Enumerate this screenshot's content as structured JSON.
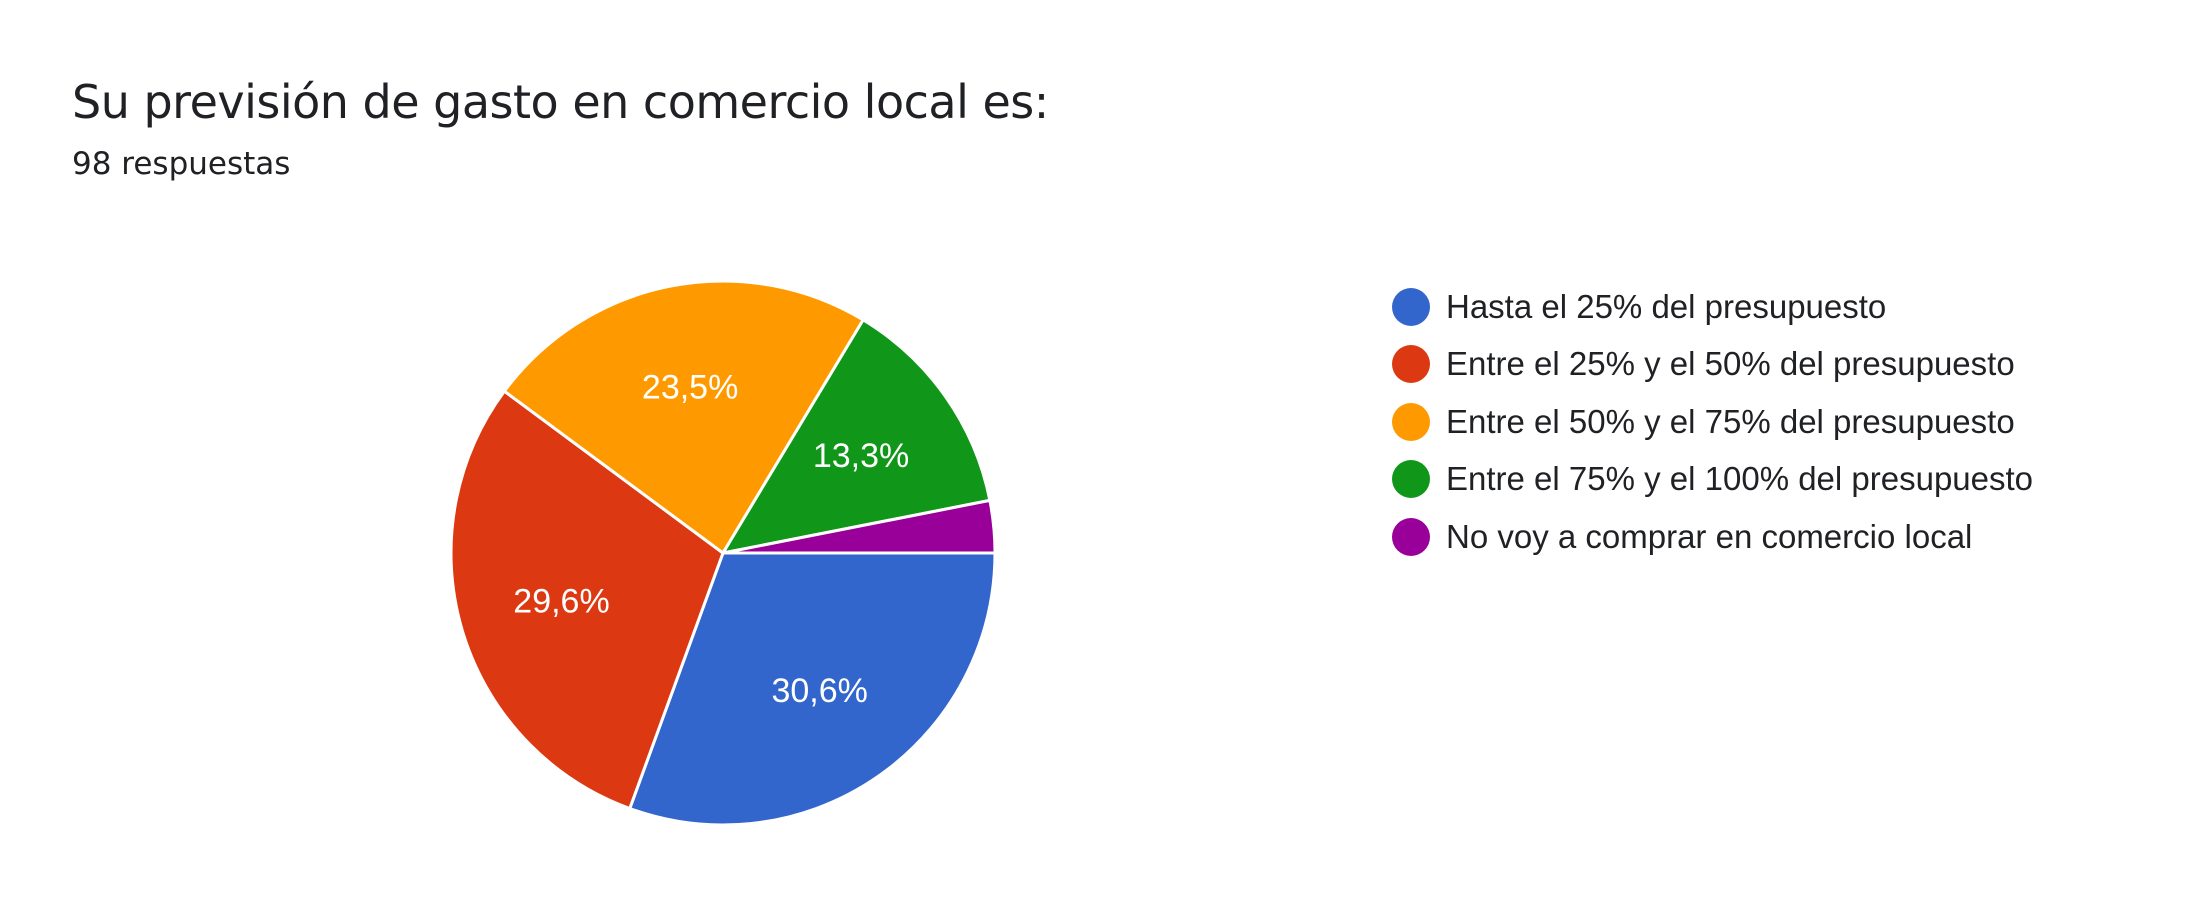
{
  "header": {
    "title": "Su previsión de gasto en comercio local es:",
    "subtitle": "98 respuestas"
  },
  "chart_data": {
    "type": "pie",
    "title": "Su previsión de gasto en comercio local es:",
    "subtitle": "98 respuestas",
    "legend_position": "right",
    "slices": [
      {
        "name": "Hasta el 25% del presupuesto",
        "value": 30.6,
        "label": "30,6%",
        "color": "#3366cc"
      },
      {
        "name": "Entre el 25% y el 50% del presupuesto",
        "value": 29.6,
        "label": "29,6%",
        "color": "#dc3912"
      },
      {
        "name": "Entre el 50% y el 75% del presupuesto",
        "value": 23.5,
        "label": "23,5%",
        "color": "#ff9900"
      },
      {
        "name": "Entre el 75% y el 100% del presupuesto",
        "value": 13.3,
        "label": "13,3%",
        "color": "#109618"
      },
      {
        "name": "No voy a comprar en comercio local",
        "value": 3.1,
        "label": "",
        "color": "#990099"
      }
    ]
  }
}
